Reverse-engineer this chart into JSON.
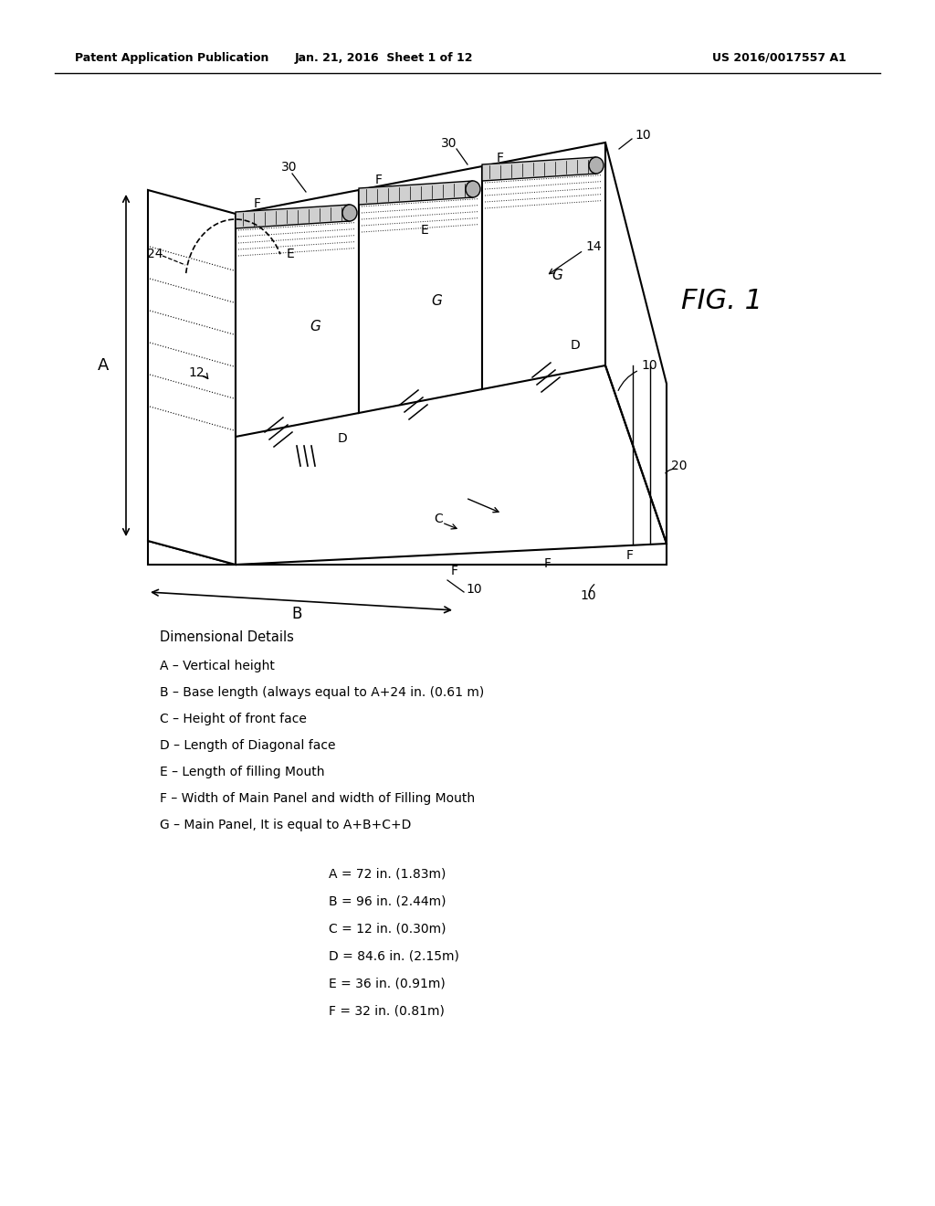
{
  "bg_color": "#ffffff",
  "header_left": "Patent Application Publication",
  "header_mid": "Jan. 21, 2016  Sheet 1 of 12",
  "header_right": "US 2016/0017557 A1",
  "fig_label": "FIG. 1",
  "dim_title": "Dimensional Details",
  "dim_labels": [
    "A – Vertical height",
    "B – Base length (always equal to A+24 in. (0.61 m)",
    "C – Height of front face",
    "D – Length of Diagonal face",
    "E – Length of filling Mouth",
    "F – Width of Main Panel and width of Filling Mouth",
    "G – Main Panel, It is equal to A+B+C+D"
  ],
  "dim_values": [
    "A = 72 in. (1.83m)",
    "B = 96 in. (2.44m)",
    "C = 12 in. (0.30m)",
    "D = 84.6 in. (2.15m)",
    "E = 36 in. (0.91m)",
    "F = 32 in. (0.81m)"
  ]
}
